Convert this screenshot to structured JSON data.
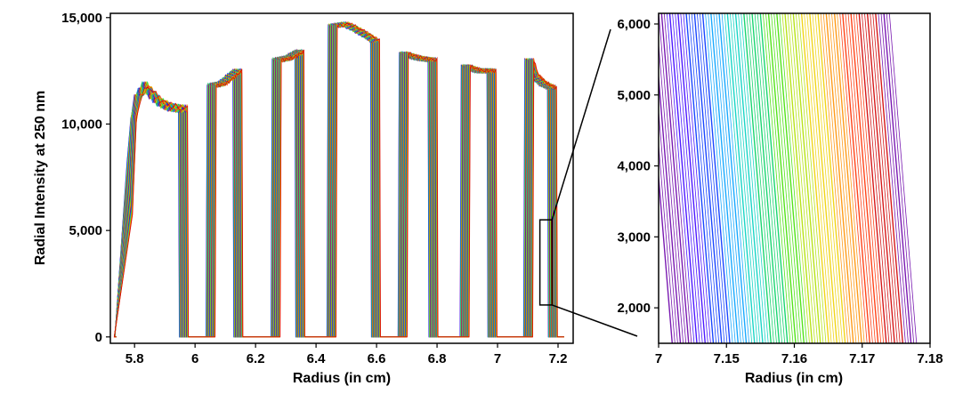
{
  "chart_data": [
    {
      "type": "line",
      "title": "",
      "xlabel": "Radius (in cm)",
      "ylabel": "Radial Intensity at 250 nm",
      "xlim": [
        5.72,
        7.25
      ],
      "ylim": [
        -300,
        15200
      ],
      "xticks": [
        5.8,
        6,
        6.2,
        6.4,
        6.6,
        6.8,
        7,
        7.2
      ],
      "xtick_labels": [
        "5.8",
        "6",
        "6.2",
        "6.4",
        "6.6",
        "6.8",
        "7",
        "7.2"
      ],
      "yticks": [
        0,
        5000,
        10000,
        15000
      ],
      "ytick_labels": [
        "0",
        "5,000",
        "10,000",
        "15,000"
      ],
      "grid": false,
      "legend": "none",
      "n_scans": 60,
      "scan_colors": [
        "#6a00a8",
        "#3a00ff",
        "#0033ff",
        "#00a0ff",
        "#00d0c0",
        "#00d060",
        "#40e000",
        "#b0e000",
        "#f0d000",
        "#ff9000",
        "#ff3000",
        "#d00000"
      ],
      "channels": [
        {
          "x_start": 5.775,
          "x_end": 5.945,
          "profile": [
            [
              0,
              8200
            ],
            [
              0.1,
              11000
            ],
            [
              0.28,
              11800
            ],
            [
              0.45,
              11300
            ],
            [
              0.58,
              11000
            ],
            [
              0.75,
              10800
            ],
            [
              1,
              10700
            ]
          ]
        },
        {
          "x_start": 6.04,
          "x_end": 6.125,
          "profile": [
            [
              0,
              11800
            ],
            [
              0.4,
              11900
            ],
            [
              0.7,
              12200
            ],
            [
              1,
              12500
            ]
          ]
        },
        {
          "x_start": 6.255,
          "x_end": 6.33,
          "profile": [
            [
              0,
              13000
            ],
            [
              0.5,
              13100
            ],
            [
              1,
              13400
            ]
          ]
        },
        {
          "x_start": 6.44,
          "x_end": 6.58,
          "profile": [
            [
              0,
              14600
            ],
            [
              0.3,
              14700
            ],
            [
              0.6,
              14400
            ],
            [
              0.85,
              14100
            ],
            [
              1,
              13900
            ]
          ]
        },
        {
          "x_start": 6.675,
          "x_end": 6.77,
          "profile": [
            [
              0,
              13300
            ],
            [
              0.5,
              13100
            ],
            [
              1,
              13000
            ]
          ]
        },
        {
          "x_start": 6.88,
          "x_end": 6.965,
          "profile": [
            [
              0,
              12700
            ],
            [
              0.5,
              12500
            ],
            [
              1,
              12500
            ]
          ]
        },
        {
          "x_start": 7.09,
          "x_end": 7.165,
          "profile": [
            [
              0,
              13000
            ],
            [
              0.2,
              12300
            ],
            [
              0.6,
              11900
            ],
            [
              1,
              11700
            ]
          ]
        }
      ],
      "scan_shift": 0.03,
      "inset_box": {
        "x": [
          7.14,
          7.18
        ],
        "y": [
          1500,
          5500
        ]
      }
    },
    {
      "type": "line",
      "title": "",
      "xlabel": "Radius (in cm)",
      "ylabel": "",
      "xlim": [
        7,
        7.18
      ],
      "ylim": [
        1500,
        6150
      ],
      "xticks": [
        7,
        7.15,
        7.16,
        7.17,
        7.18
      ],
      "xtick_labels": [
        "7",
        "7.15",
        "7.16",
        "7.17",
        "7.18"
      ],
      "yticks": [
        2000,
        3000,
        4000,
        5000,
        6000
      ],
      "ytick_labels": [
        "2,000",
        "3,000",
        "4,000",
        "5,000",
        "6,000"
      ],
      "grid": false,
      "legend": "none",
      "n_lines": 90,
      "x_at_bottom_range": [
        7.142,
        7.178
      ],
      "line_tilt": 0.004
    }
  ]
}
